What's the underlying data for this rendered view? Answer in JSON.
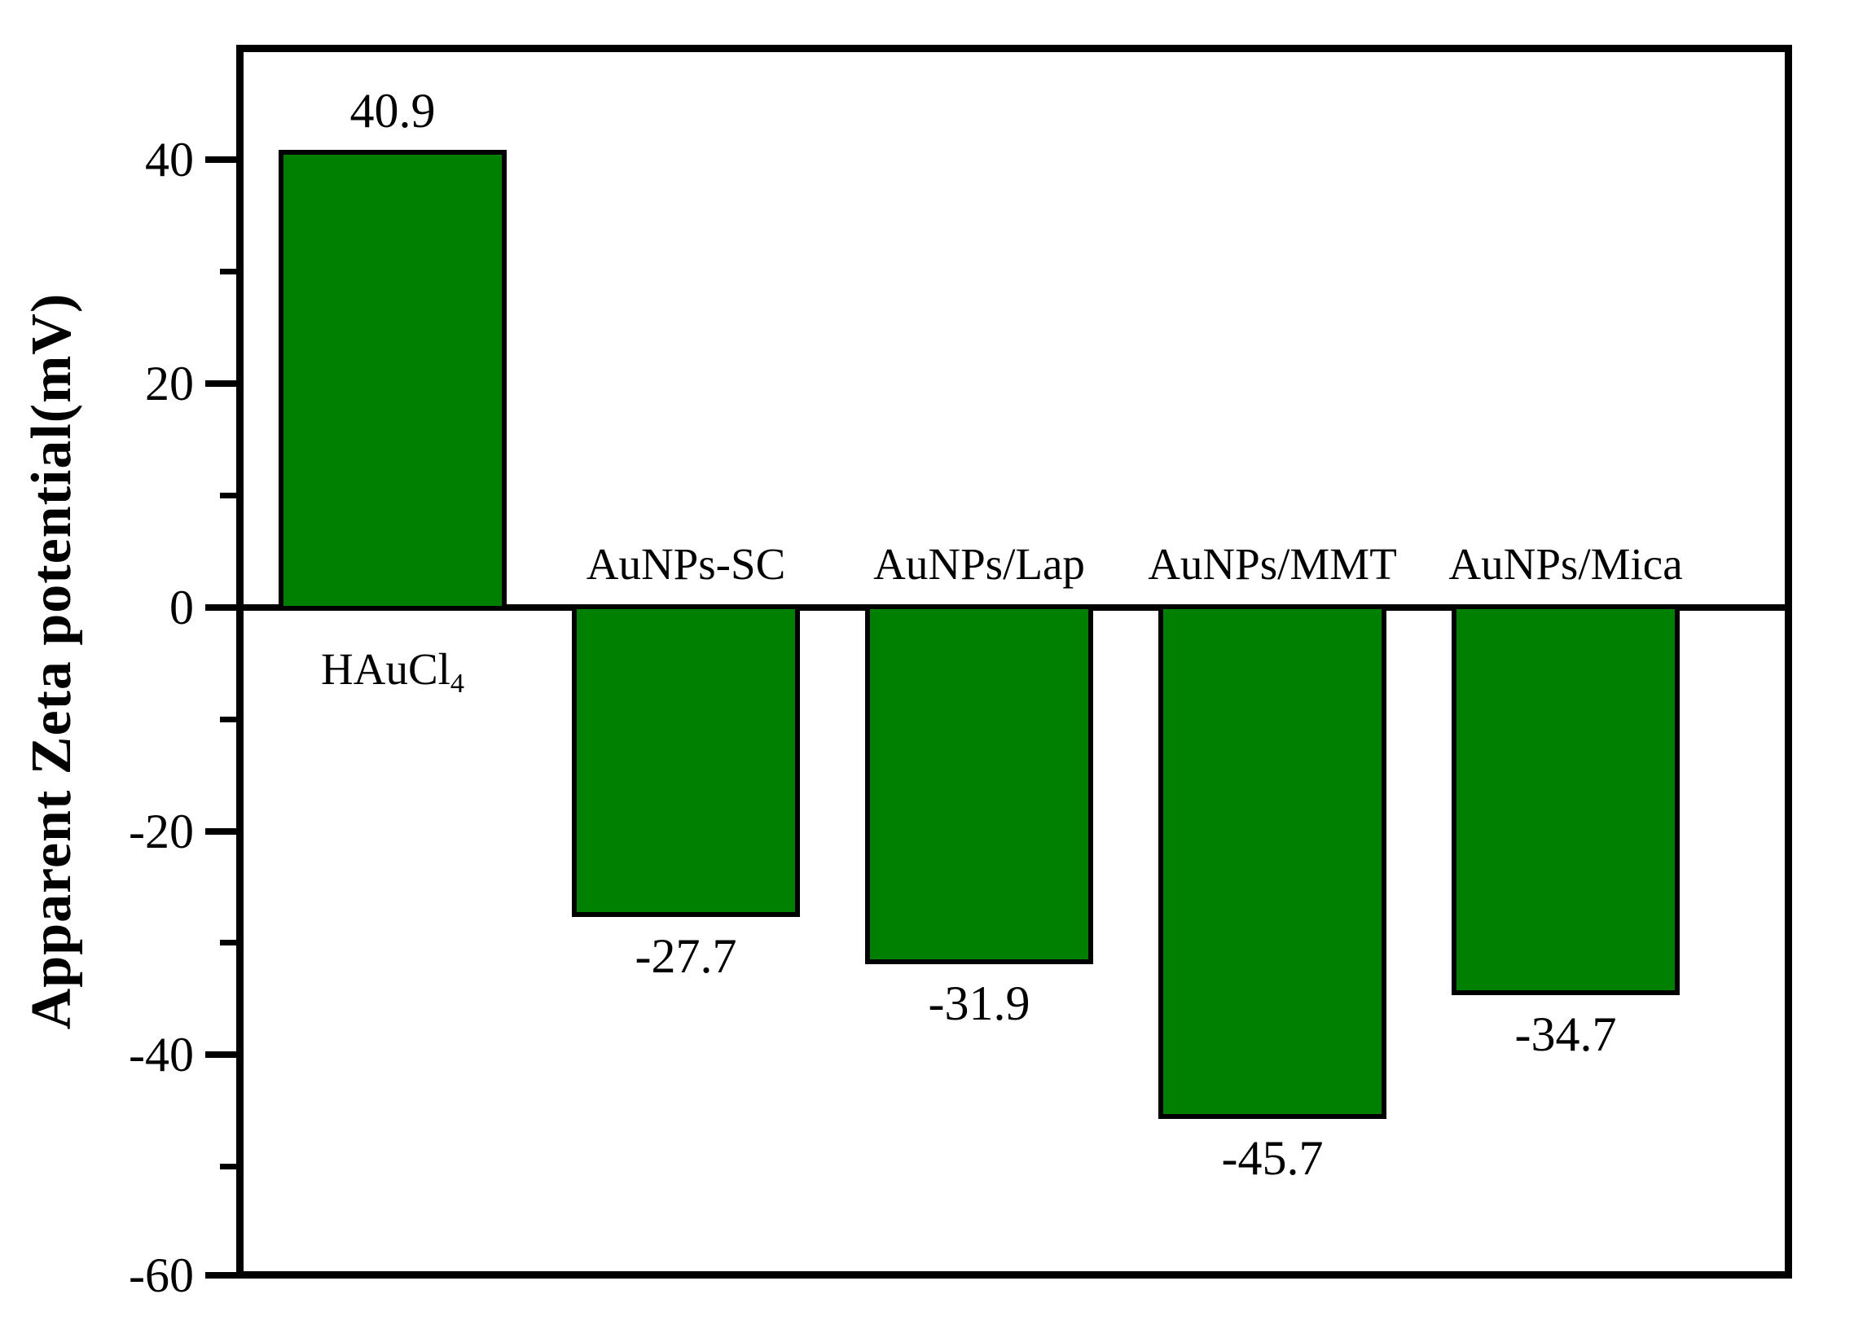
{
  "figure": {
    "background": "#ffffff",
    "text_color": "#000000"
  },
  "chart_data": {
    "type": "bar",
    "title": "",
    "xlabel": "",
    "ylabel": "Apparent Zeta potential(mV)",
    "ylim": [
      -60,
      50.3
    ],
    "grid": false,
    "legend": "none",
    "bar_fill_color": "#008000",
    "bar_border_color": "#000000",
    "axis_color": "#000000",
    "categories": [
      "HAuCl4",
      "AuNPs-SC",
      "AuNPs/Lap",
      "AuNPs/MMT",
      "AuNPs/Mica"
    ],
    "category_display": [
      {
        "text": "HAuCl",
        "sub": "4"
      },
      {
        "text": "AuNPs-SC",
        "sub": ""
      },
      {
        "text": "AuNPs/Lap",
        "sub": ""
      },
      {
        "text": "AuNPs/MMT",
        "sub": ""
      },
      {
        "text": "AuNPs/Mica",
        "sub": ""
      }
    ],
    "values": [
      40.9,
      -27.7,
      -31.9,
      -45.7,
      -34.7
    ],
    "value_labels": [
      "40.9",
      "-27.7",
      "-31.9",
      "-45.7",
      "-34.7"
    ],
    "y_major_ticks": [
      {
        "value": 40,
        "label": "40"
      },
      {
        "value": 20,
        "label": "20"
      },
      {
        "value": 0,
        "label": "0"
      },
      {
        "value": -20,
        "label": "-20"
      },
      {
        "value": -40,
        "label": "-40"
      },
      {
        "value": -60,
        "label": "-60"
      }
    ],
    "y_minor_ticks": [
      30,
      10,
      -10,
      -30,
      -50
    ]
  }
}
